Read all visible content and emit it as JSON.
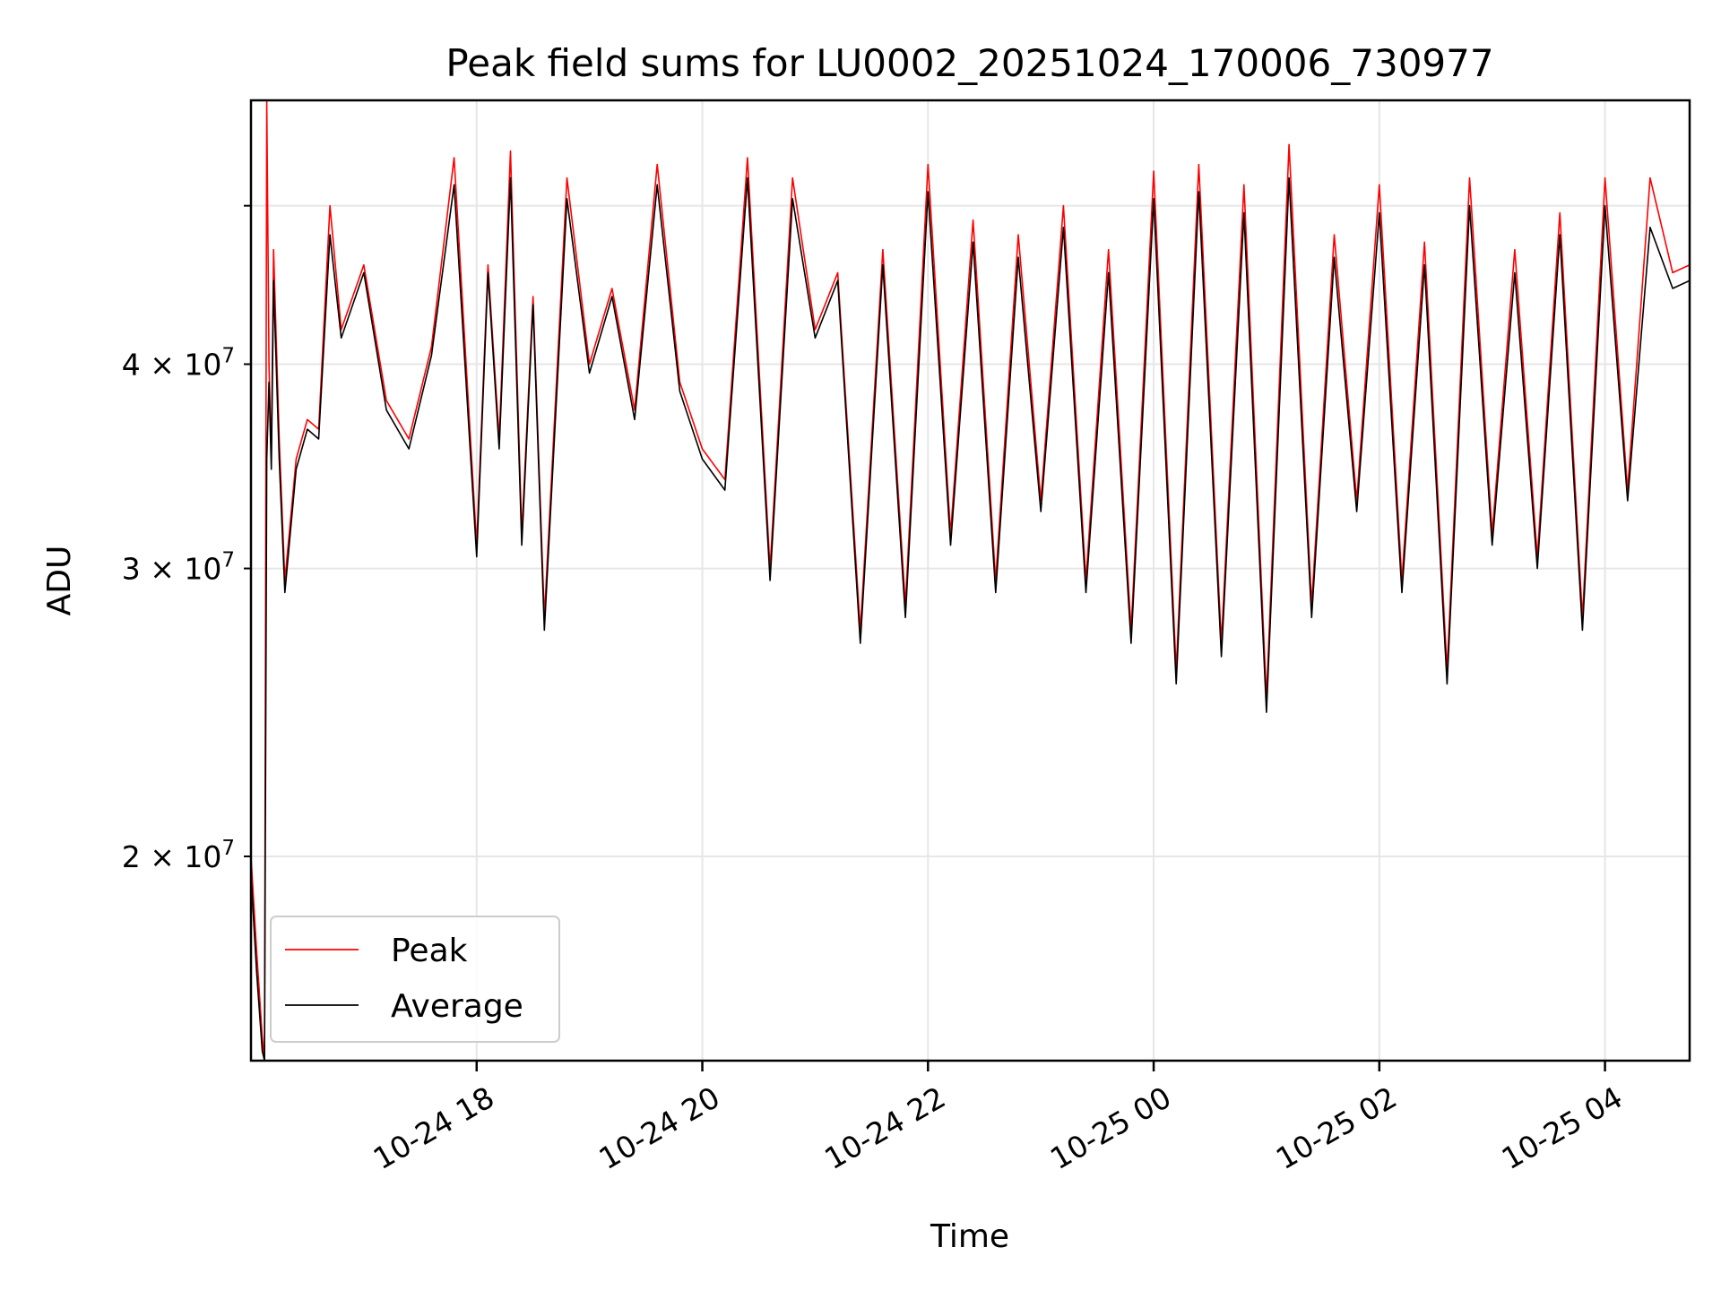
{
  "chart_data": {
    "type": "line",
    "title": "Peak field sums for LU0002_20251024_170006_730977",
    "xlabel": "Time",
    "ylabel": "ADU",
    "yscale": "log",
    "grid": true,
    "legend_position": "lower-left",
    "x_range_hours": [
      -1.0,
      11.75
    ],
    "y_range": [
      15000000,
      58000000
    ],
    "x_ticks": [
      {
        "hours": 1,
        "label": "10-24 18"
      },
      {
        "hours": 3,
        "label": "10-24 20"
      },
      {
        "hours": 5,
        "label": "10-24 22"
      },
      {
        "hours": 7,
        "label": "10-25 00"
      },
      {
        "hours": 9,
        "label": "10-25 02"
      },
      {
        "hours": 11,
        "label": "10-25 04"
      }
    ],
    "y_ticks": [
      {
        "value": 20000000,
        "label_base": "2",
        "label_exp": "7"
      },
      {
        "value": 30000000,
        "label_base": "3",
        "label_exp": "7"
      },
      {
        "value": 40000000,
        "label_base": "4",
        "label_exp": "7"
      },
      {
        "value": 50000000,
        "label_base": "",
        "label_exp": ""
      }
    ],
    "series": [
      {
        "name": "Peak",
        "color": "#ff0000",
        "x_hours": [
          -1.0,
          -0.95,
          -0.9,
          -0.88,
          -0.86,
          -0.84,
          -0.82,
          -0.8,
          -0.75,
          -0.7,
          -0.6,
          -0.5,
          -0.4,
          -0.3,
          -0.2,
          0.0,
          0.2,
          0.4,
          0.6,
          0.8,
          1.0,
          1.1,
          1.2,
          1.3,
          1.4,
          1.5,
          1.6,
          1.8,
          2.0,
          2.2,
          2.4,
          2.6,
          2.8,
          3.0,
          3.2,
          3.4,
          3.6,
          3.8,
          4.0,
          4.2,
          4.4,
          4.6,
          4.8,
          5.0,
          5.2,
          5.4,
          5.6,
          5.8,
          6.0,
          6.2,
          6.4,
          6.6,
          6.8,
          7.0,
          7.2,
          7.4,
          7.6,
          7.8,
          8.0,
          8.2,
          8.4,
          8.6,
          8.8,
          9.0,
          9.2,
          9.4,
          9.6,
          9.8,
          10.0,
          10.2,
          10.4,
          10.6,
          10.8,
          11.0,
          11.2,
          11.4,
          11.6,
          11.75
        ],
        "values": [
          20000000,
          17500000,
          15500000,
          15000000,
          58000000,
          40000000,
          35000000,
          47000000,
          36000000,
          29500000,
          35000000,
          37000000,
          36500000,
          50000000,
          42000000,
          46000000,
          38000000,
          36000000,
          41000000,
          53500000,
          31000000,
          46000000,
          36000000,
          54000000,
          31500000,
          44000000,
          28000000,
          52000000,
          40000000,
          44500000,
          37500000,
          53000000,
          39000000,
          35500000,
          34000000,
          53500000,
          30000000,
          52000000,
          42000000,
          45500000,
          27500000,
          47000000,
          28500000,
          53000000,
          31500000,
          49000000,
          29500000,
          48000000,
          33000000,
          50000000,
          29500000,
          47000000,
          27500000,
          52500000,
          26000000,
          53000000,
          27000000,
          51500000,
          25000000,
          54500000,
          28500000,
          48000000,
          33000000,
          51500000,
          29500000,
          47500000,
          26000000,
          52000000,
          31500000,
          47000000,
          30500000,
          49500000,
          28000000,
          52000000,
          33500000,
          52000000,
          45500000,
          46000000
        ]
      },
      {
        "name": "Average",
        "color": "#000000",
        "x_hours": [
          -1.0,
          -0.95,
          -0.9,
          -0.88,
          -0.86,
          -0.84,
          -0.82,
          -0.8,
          -0.75,
          -0.7,
          -0.6,
          -0.5,
          -0.4,
          -0.3,
          -0.2,
          0.0,
          0.2,
          0.4,
          0.6,
          0.8,
          1.0,
          1.1,
          1.2,
          1.3,
          1.4,
          1.5,
          1.6,
          1.8,
          2.0,
          2.2,
          2.4,
          2.6,
          2.8,
          3.0,
          3.2,
          3.4,
          3.6,
          3.8,
          4.0,
          4.2,
          4.4,
          4.6,
          4.8,
          5.0,
          5.2,
          5.4,
          5.6,
          5.8,
          6.0,
          6.2,
          6.4,
          6.6,
          6.8,
          7.0,
          7.2,
          7.4,
          7.6,
          7.8,
          8.0,
          8.2,
          8.4,
          8.6,
          8.8,
          9.0,
          9.2,
          9.4,
          9.6,
          9.8,
          10.0,
          10.2,
          10.4,
          10.6,
          10.8,
          11.0,
          11.2,
          11.4,
          11.6,
          11.75
        ],
        "values": [
          19500000,
          17000000,
          15200000,
          15000000,
          35000000,
          39000000,
          34500000,
          45000000,
          35000000,
          29000000,
          34500000,
          36500000,
          36000000,
          48000000,
          41500000,
          45500000,
          37500000,
          35500000,
          40500000,
          51500000,
          30500000,
          45500000,
          35500000,
          52000000,
          31000000,
          43500000,
          27500000,
          50500000,
          39500000,
          44000000,
          37000000,
          51500000,
          38500000,
          35000000,
          33500000,
          52000000,
          29500000,
          50500000,
          41500000,
          45000000,
          27000000,
          46000000,
          28000000,
          51000000,
          31000000,
          47500000,
          29000000,
          46500000,
          32500000,
          48500000,
          29000000,
          45500000,
          27000000,
          50500000,
          25500000,
          51000000,
          26500000,
          49500000,
          24500000,
          52000000,
          28000000,
          46500000,
          32500000,
          49500000,
          29000000,
          46000000,
          25500000,
          50000000,
          31000000,
          45500000,
          30000000,
          48000000,
          27500000,
          50000000,
          33000000,
          48500000,
          44500000,
          45000000
        ]
      }
    ]
  }
}
